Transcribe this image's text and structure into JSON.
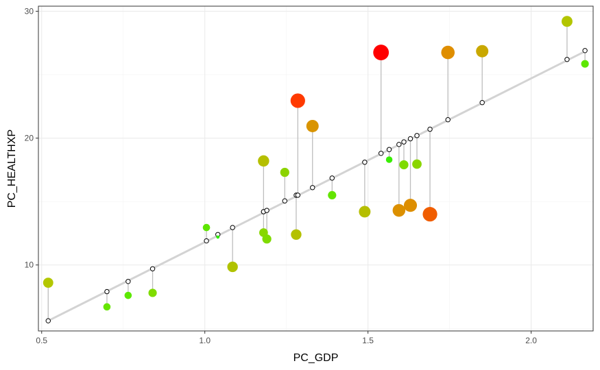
{
  "chart_data": {
    "type": "scatter",
    "title": "",
    "xlabel": "PC_GDP",
    "ylabel": "PC_HEALTHXP",
    "xlim": [
      0.49,
      2.19
    ],
    "ylim": [
      4.8,
      30.4
    ],
    "x_ticks": [
      0.5,
      1.0,
      1.5,
      2.0
    ],
    "x_tick_labels": [
      "0.5",
      "1.0",
      "1.5",
      "2.0"
    ],
    "y_ticks": [
      10,
      20,
      30
    ],
    "y_tick_labels": [
      "10",
      "20",
      "30"
    ],
    "grid": true,
    "legend": "none",
    "fit_line": {
      "x": [
        0.52,
        2.17
      ],
      "y": [
        5.6,
        26.9
      ],
      "color": "#d3d3d3"
    },
    "points": [
      {
        "x": 0.52,
        "y": 8.6,
        "fitted": 5.6,
        "color": "#b3c700",
        "size": 1.4
      },
      {
        "x": 0.7,
        "y": 6.7,
        "fitted": 7.9,
        "color": "#66e500",
        "size": 1.0
      },
      {
        "x": 0.765,
        "y": 7.6,
        "fitted": 8.7,
        "color": "#5ce800",
        "size": 1.0
      },
      {
        "x": 0.84,
        "y": 7.8,
        "fitted": 9.7,
        "color": "#7fdc00",
        "size": 1.15
      },
      {
        "x": 1.005,
        "y": 12.95,
        "fitted": 11.9,
        "color": "#5ee500",
        "size": 1.0
      },
      {
        "x": 1.04,
        "y": 12.2,
        "fitted": 12.4,
        "color": "#2fef00",
        "size": 0.45
      },
      {
        "x": 1.085,
        "y": 9.85,
        "fitted": 12.95,
        "color": "#b0c200",
        "size": 1.45
      },
      {
        "x": 1.18,
        "y": 12.55,
        "fitted": 14.2,
        "color": "#88d700",
        "size": 1.2
      },
      {
        "x": 1.18,
        "y": 18.2,
        "fitted": 14.2,
        "color": "#b5bf00",
        "size": 1.55
      },
      {
        "x": 1.19,
        "y": 12.05,
        "fitted": 14.3,
        "color": "#7fdb00",
        "size": 1.25
      },
      {
        "x": 1.245,
        "y": 17.3,
        "fitted": 15.05,
        "color": "#8cd300",
        "size": 1.25
      },
      {
        "x": 1.28,
        "y": 12.4,
        "fitted": 15.5,
        "color": "#b4c100",
        "size": 1.45
      },
      {
        "x": 1.285,
        "y": 22.95,
        "fitted": 15.5,
        "color": "#ff3a00",
        "size": 2.0
      },
      {
        "x": 1.33,
        "y": 20.95,
        "fitted": 16.1,
        "color": "#d99400",
        "size": 1.7
      },
      {
        "x": 1.39,
        "y": 15.5,
        "fitted": 16.85,
        "color": "#63e400",
        "size": 1.15
      },
      {
        "x": 1.49,
        "y": 14.2,
        "fitted": 18.1,
        "color": "#b5be00",
        "size": 1.6
      },
      {
        "x": 1.54,
        "y": 26.75,
        "fitted": 18.8,
        "color": "#ff0000",
        "size": 2.15
      },
      {
        "x": 1.565,
        "y": 18.3,
        "fitted": 19.1,
        "color": "#38ee00",
        "size": 0.9
      },
      {
        "x": 1.595,
        "y": 14.3,
        "fitted": 19.5,
        "color": "#dc9000",
        "size": 1.75
      },
      {
        "x": 1.61,
        "y": 17.9,
        "fitted": 19.7,
        "color": "#7fdb00",
        "size": 1.25
      },
      {
        "x": 1.63,
        "y": 14.7,
        "fitted": 19.95,
        "color": "#dd8e00",
        "size": 1.8
      },
      {
        "x": 1.65,
        "y": 17.95,
        "fitted": 20.2,
        "color": "#8ad600",
        "size": 1.3
      },
      {
        "x": 1.69,
        "y": 14.0,
        "fitted": 20.7,
        "color": "#f05d00",
        "size": 2.0
      },
      {
        "x": 1.745,
        "y": 26.75,
        "fitted": 21.45,
        "color": "#df8e00",
        "size": 1.85
      },
      {
        "x": 1.85,
        "y": 26.85,
        "fitted": 22.8,
        "color": "#c9a800",
        "size": 1.7
      },
      {
        "x": 2.11,
        "y": 29.2,
        "fitted": 26.2,
        "color": "#b3c500",
        "size": 1.5
      },
      {
        "x": 2.165,
        "y": 25.85,
        "fitted": 26.9,
        "color": "#5de700",
        "size": 1.05
      }
    ]
  }
}
